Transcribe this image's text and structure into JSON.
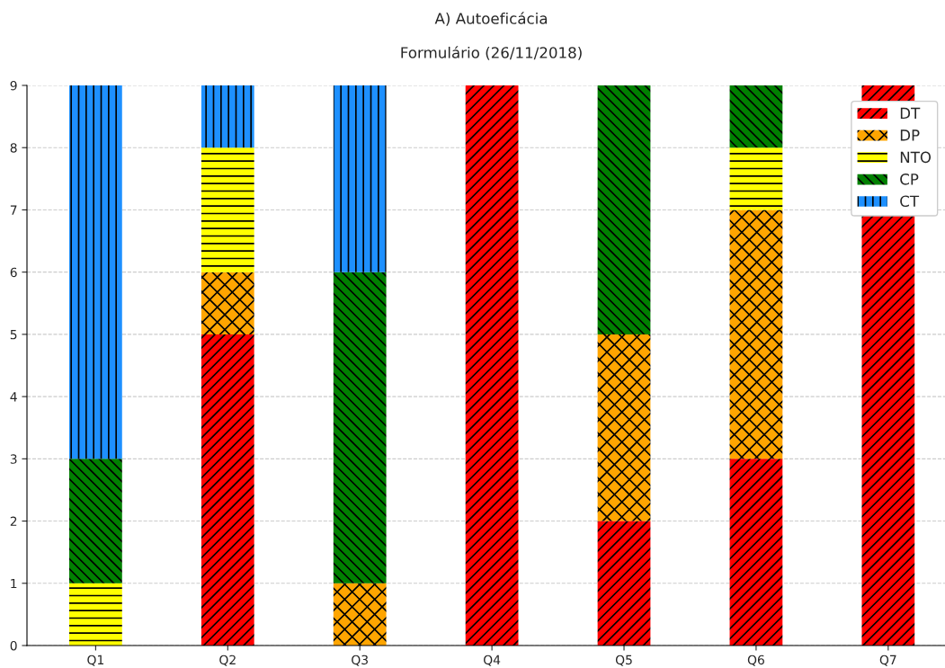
{
  "chart_data": {
    "type": "bar",
    "title": "A) Autoeficácia",
    "subtitle": "Formulário (26/11/2018)",
    "categories": [
      "Q1",
      "Q2",
      "Q3",
      "Q4",
      "Q5",
      "Q6",
      "Q7"
    ],
    "stacked": true,
    "series": [
      {
        "name": "DT",
        "color": "#ff0000",
        "values": [
          0,
          5,
          0,
          9,
          2,
          3,
          9
        ]
      },
      {
        "name": "DP",
        "color": "#ffa500",
        "values": [
          0,
          1,
          1,
          0,
          3,
          4,
          0
        ]
      },
      {
        "name": "NTO",
        "color": "#ffff00",
        "values": [
          1,
          2,
          0,
          0,
          0,
          1,
          0
        ]
      },
      {
        "name": "CP",
        "color": "#008000",
        "values": [
          2,
          0,
          5,
          0,
          4,
          1,
          0
        ]
      },
      {
        "name": "CT",
        "color": "#1e90ff",
        "values": [
          6,
          1,
          3,
          0,
          0,
          0,
          0
        ]
      }
    ],
    "ylim": [
      0,
      9
    ],
    "yticks": [
      0,
      1,
      2,
      3,
      4,
      5,
      6,
      7,
      8,
      9
    ],
    "grid": "y",
    "legend": "top right"
  }
}
